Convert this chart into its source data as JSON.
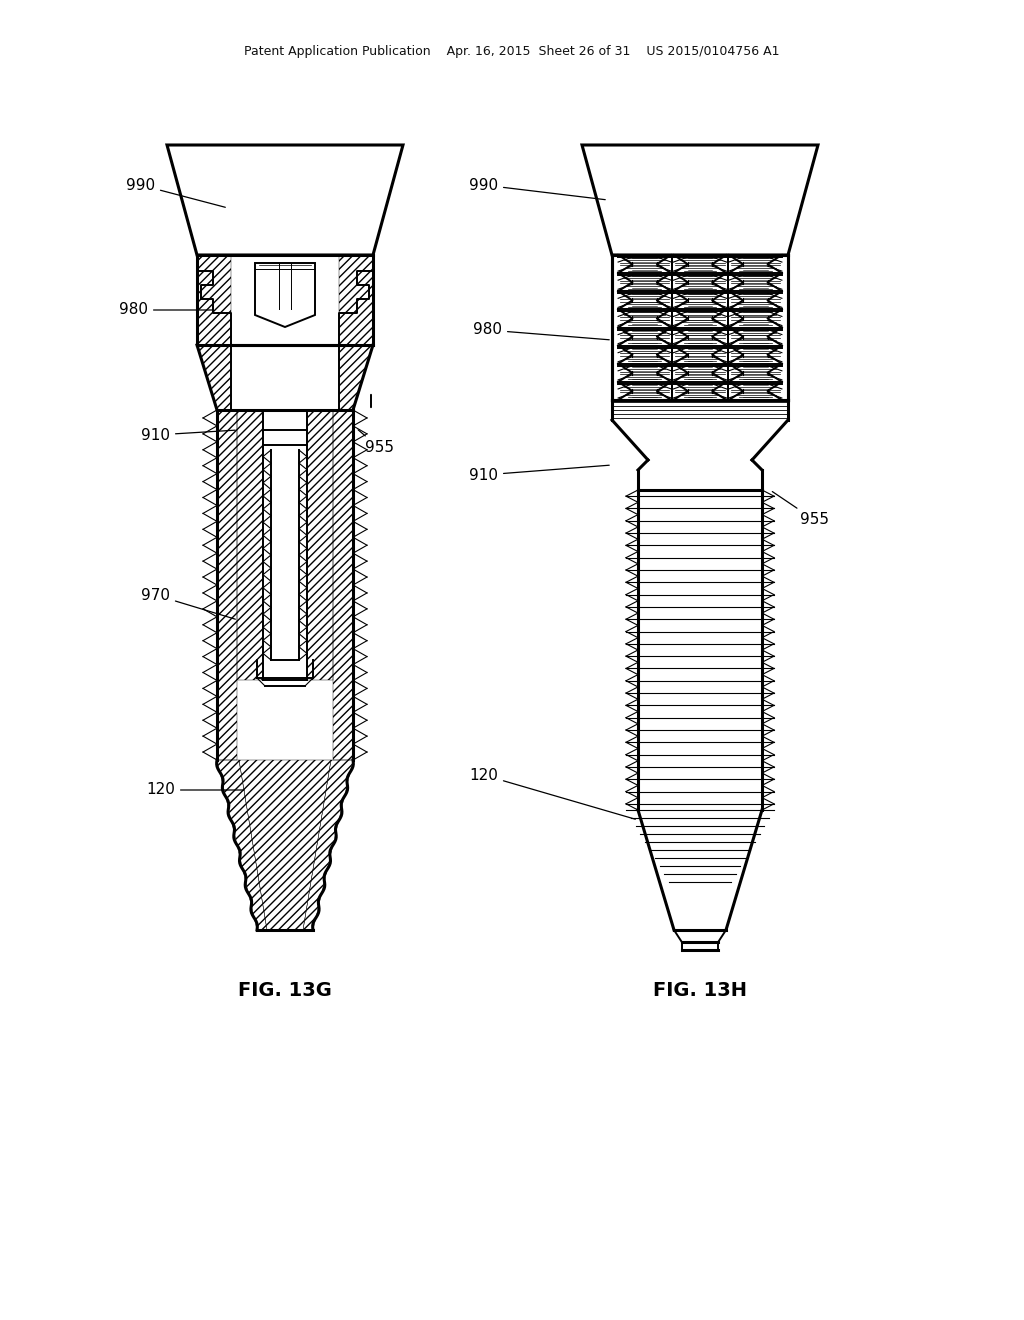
{
  "background_color": "#ffffff",
  "line_color": "#000000",
  "header_text": "Patent Application Publication    Apr. 16, 2015  Sheet 26 of 31    US 2015/0104756 A1",
  "fig13g_label": "FIG. 13G",
  "fig13h_label": "FIG. 13H"
}
